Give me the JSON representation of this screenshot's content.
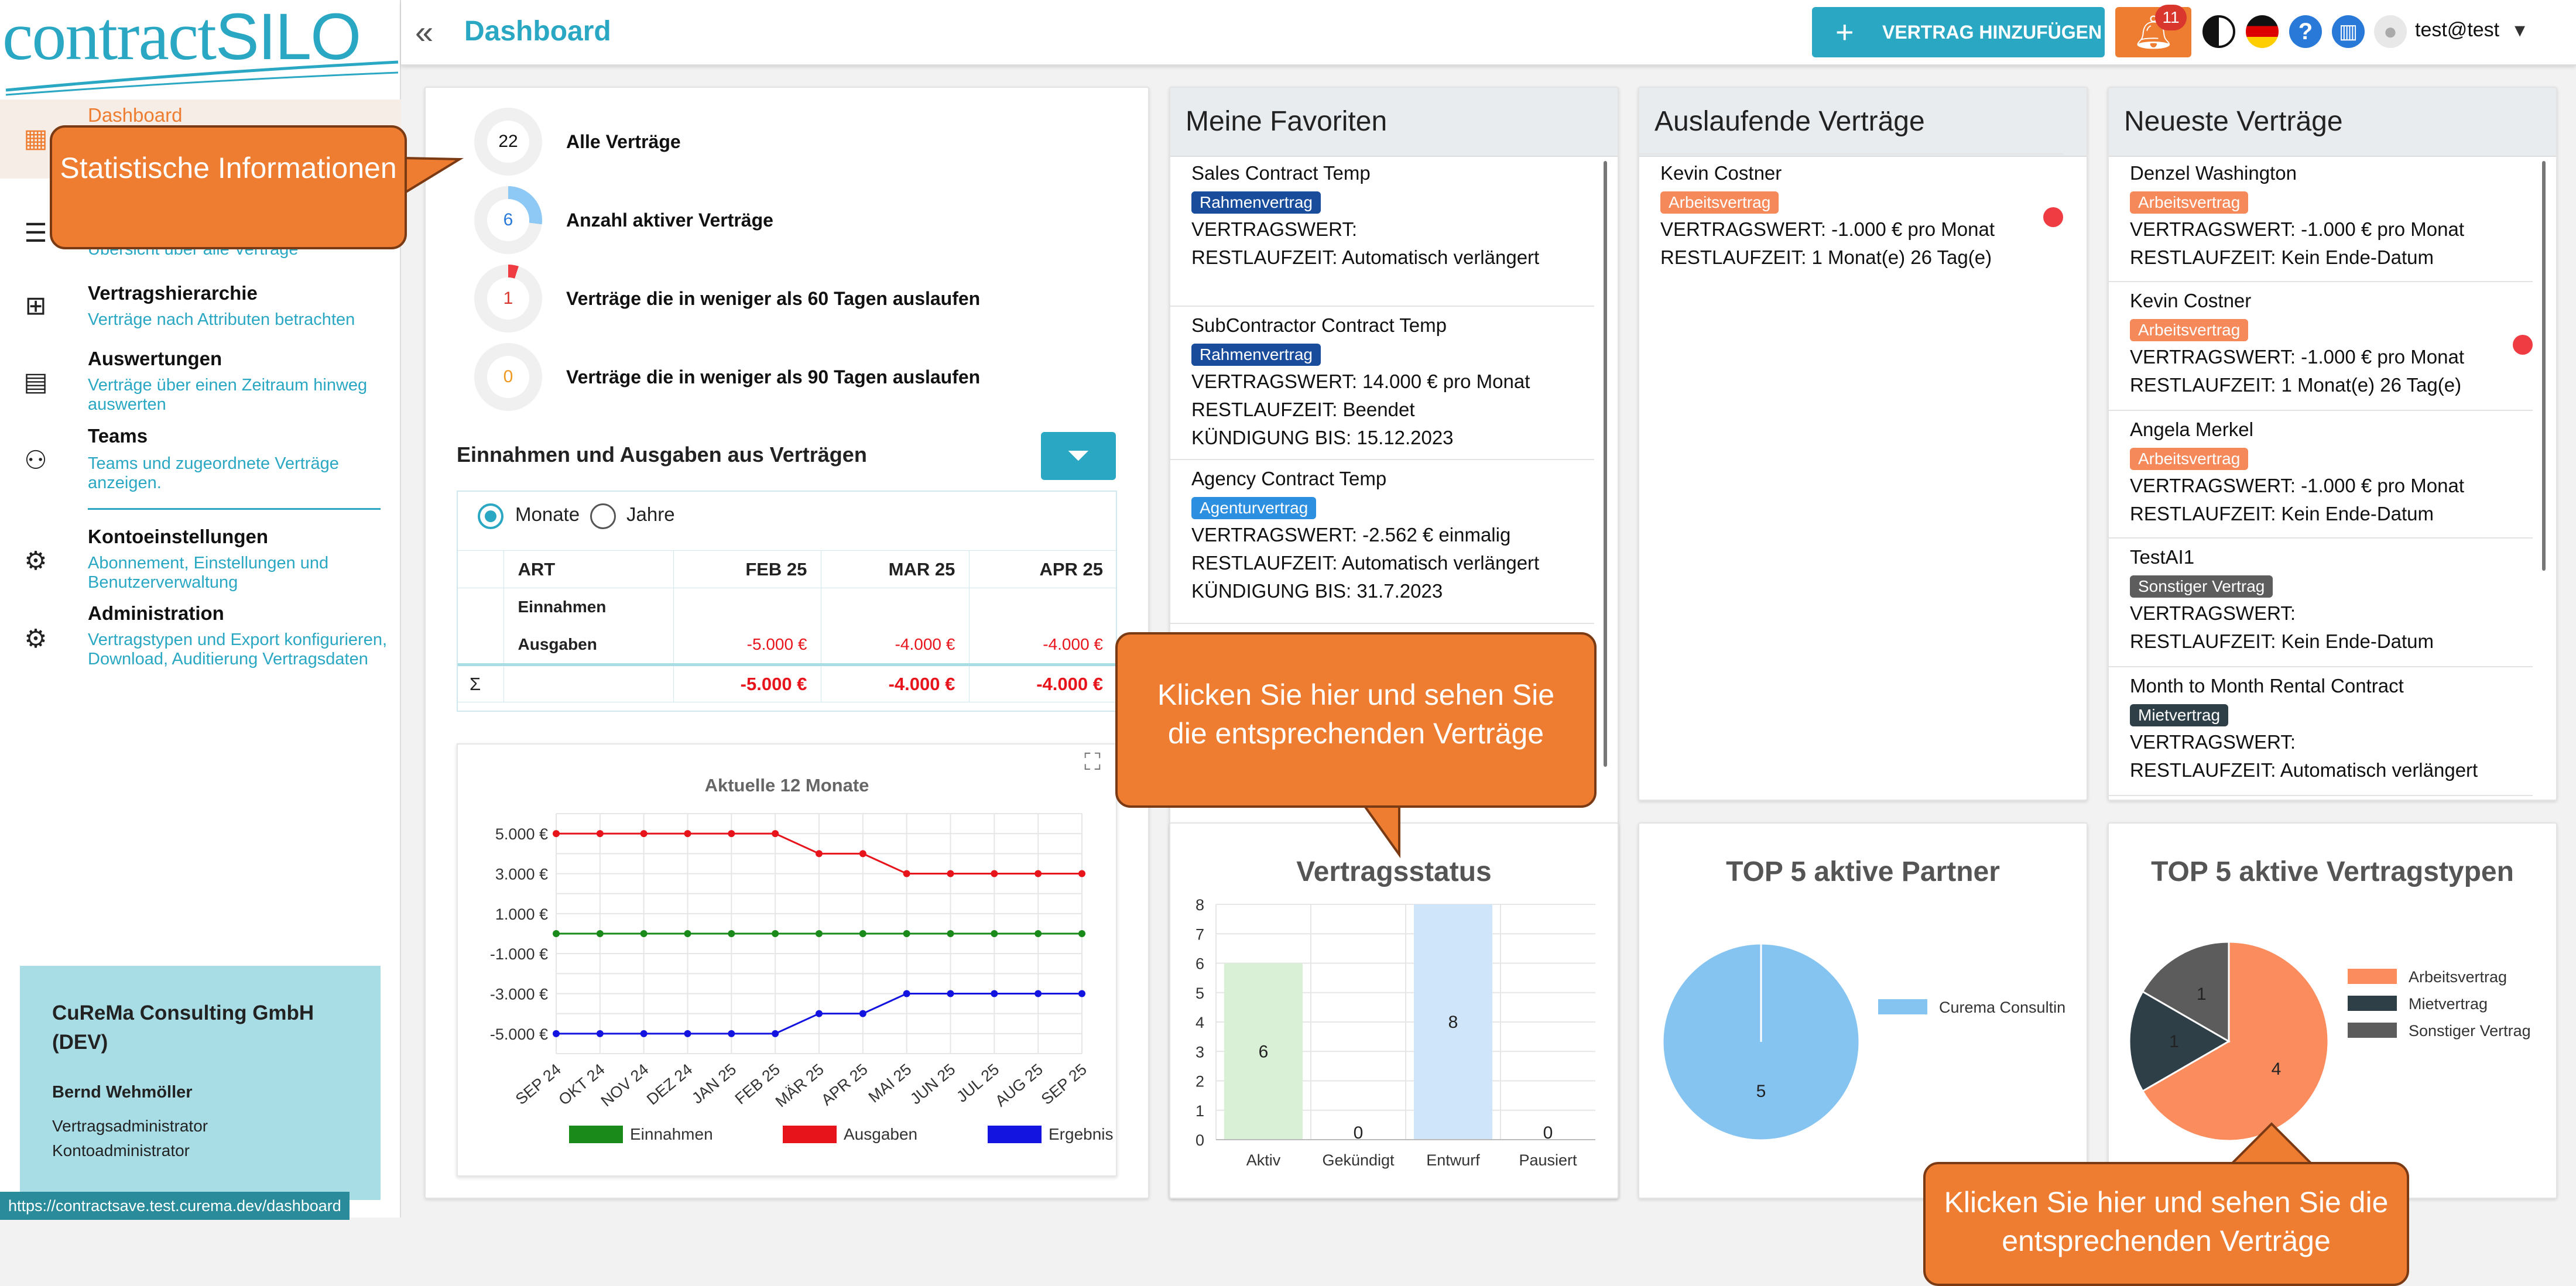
{
  "app": {
    "logo_part1": "contract",
    "logo_part2": "SILO"
  },
  "header": {
    "title": "Dashboard",
    "add_button": "VERTRAG HINZUFÜGEN",
    "notification_count": "11",
    "user": "test@test"
  },
  "sidebar": {
    "items": [
      {
        "title": "Dashboard",
        "sub": ""
      },
      {
        "title": "",
        "sub": "Übersicht über alle Verträge"
      },
      {
        "title": "Vertragshierarchie",
        "sub": "Verträge nach Attributen betrachten"
      },
      {
        "title": "Auswertungen",
        "sub": "Verträge über einen Zeitraum hinweg auswerten"
      },
      {
        "title": "Teams",
        "sub": "Teams und zugeordnete Verträge anzeigen."
      },
      {
        "title": "Kontoeinstellungen",
        "sub": "Abonnement, Einstellungen und Benutzerverwaltung"
      },
      {
        "title": "Administration",
        "sub": "Vertragstypen und Export konfigurieren, Download, Auditierung Vertragsdaten"
      }
    ],
    "org": {
      "name": "CuReMa Consulting GmbH (DEV)",
      "user": "Bernd Wehmöller",
      "role1": "Vertragsadministrator",
      "role2": "Kontoadministrator"
    }
  },
  "status_url": "https://contractsave.test.curema.dev/dashboard",
  "stats": [
    {
      "count": "22",
      "label": "Alle Verträge",
      "fill": 0
    },
    {
      "count": "6",
      "label": "Anzahl aktiver Verträge",
      "fill": 0.27
    },
    {
      "count": "1",
      "label": "Verträge die in weniger als 60 Tagen auslaufen",
      "fill": 0.05
    },
    {
      "count": "0",
      "label": "Verträge die in weniger als 90 Tagen auslaufen",
      "fill": 0
    }
  ],
  "finance": {
    "title": "Einnahmen und Ausgaben aus Verträgen",
    "period_months": "Monate",
    "period_years": "Jahre",
    "columns": [
      "ART",
      "FEB 25",
      "MAR 25",
      "APR 25"
    ],
    "row_income": "Einnahmen",
    "row_expense": "Ausgaben",
    "expense_values": [
      "-5.000 €",
      "-4.000 €",
      "-4.000 €"
    ],
    "sum_label": "Σ",
    "sum_values": [
      "-5.000 €",
      "-4.000 €",
      "-4.000 €"
    ]
  },
  "line_chart": {
    "chart_data": {
      "type": "line",
      "title": "Aktuelle 12 Monate",
      "x": [
        "SEP 24",
        "OKT 24",
        "NOV 24",
        "DEZ 24",
        "JAN 25",
        "FEB 25",
        "MÄR 25",
        "APR 25",
        "MAI 25",
        "JUN 25",
        "JUL 25",
        "AUG 25",
        "SEP 25"
      ],
      "y_ticks": [
        "5.000 €",
        "3.000 €",
        "1.000 €",
        "-1.000 €",
        "-3.000 €",
        "-5.000 €"
      ],
      "ylim": [
        -6000,
        6000
      ],
      "series": [
        {
          "name": "Einnahmen",
          "color": "#1a8a1a",
          "values": [
            0,
            0,
            0,
            0,
            0,
            0,
            0,
            0,
            0,
            0,
            0,
            0,
            0
          ]
        },
        {
          "name": "Ausgaben",
          "color": "#e8141b",
          "values": [
            5000,
            5000,
            5000,
            5000,
            5000,
            5000,
            4000,
            4000,
            3000,
            3000,
            3000,
            3000,
            3000
          ]
        },
        {
          "name": "Ergebnis",
          "color": "#1414e0",
          "values": [
            -5000,
            -5000,
            -5000,
            -5000,
            -5000,
            -5000,
            -4000,
            -4000,
            -3000,
            -3000,
            -3000,
            -3000,
            -3000
          ]
        }
      ]
    }
  },
  "favorites": {
    "title": "Meine Favoriten",
    "items": [
      {
        "name": "Sales Contract Temp",
        "tag": "Rahmenvertrag",
        "lines": [
          "VERTRAGSWERT:",
          "RESTLAUFZEIT: Automatisch verlängert"
        ]
      },
      {
        "name": "SubContractor Contract Temp",
        "tag": "Rahmenvertrag",
        "lines": [
          "VERTRAGSWERT: 14.000 € pro Monat",
          "RESTLAUFZEIT: Beendet",
          "KÜNDIGUNG BIS: 15.12.2023"
        ]
      },
      {
        "name": "Agency Contract Temp",
        "tag": "Agenturvertrag",
        "lines": [
          "VERTRAGSWERT: -2.562 € einmalig",
          "RESTLAUFZEIT: Automatisch verlängert",
          "KÜNDIGUNG BIS: 31.7.2023"
        ]
      }
    ]
  },
  "expiring": {
    "title": "Auslaufende Verträge",
    "items": [
      {
        "name": "Kevin Costner",
        "tag": "Arbeitsvertrag",
        "lines": [
          "VERTRAGSWERT: -1.000 € pro Monat",
          "RESTLAUFZEIT: 1 Monat(e) 26 Tag(e)"
        ]
      }
    ]
  },
  "newest": {
    "title": "Neueste Verträge",
    "items": [
      {
        "name": "Denzel Washington",
        "tag": "Arbeitsvertrag",
        "lines": [
          "VERTRAGSWERT: -1.000 € pro Monat",
          "RESTLAUFZEIT: Kein Ende-Datum"
        ]
      },
      {
        "name": "Kevin Costner",
        "tag": "Arbeitsvertrag",
        "lines": [
          "VERTRAGSWERT: -1.000 € pro Monat",
          "RESTLAUFZEIT: 1 Monat(e) 26 Tag(e)"
        ]
      },
      {
        "name": "Angela Merkel",
        "tag": "Arbeitsvertrag",
        "lines": [
          "VERTRAGSWERT: -1.000 € pro Monat",
          "RESTLAUFZEIT: Kein Ende-Datum"
        ]
      },
      {
        "name": "TestAI1",
        "tag": "Sonstiger Vertrag",
        "lines": [
          "VERTRAGSWERT:",
          "RESTLAUFZEIT: Kein Ende-Datum"
        ]
      },
      {
        "name": "Month to Month Rental Contract",
        "tag": "Mietvertrag",
        "lines": [
          "VERTRAGSWERT:",
          "RESTLAUFZEIT: Automatisch verlängert"
        ]
      }
    ]
  },
  "status_chart": {
    "chart_data": {
      "type": "bar",
      "title": "Vertragsstatus",
      "categories": [
        "Aktiv",
        "Gekündigt",
        "Entwurf",
        "Pausiert"
      ],
      "values": [
        6,
        0,
        8,
        0
      ],
      "ylim": [
        0,
        8
      ],
      "y_ticks": [
        "0",
        "1",
        "2",
        "3",
        "4",
        "5",
        "6",
        "7",
        "8"
      ],
      "colors": [
        "#d9efd6",
        "#f0d6d6",
        "#cfe6fa",
        "#eee"
      ]
    }
  },
  "partner_chart": {
    "chart_data": {
      "type": "pie",
      "title": "TOP 5 aktive Partner",
      "labels": [
        "Curema Consultin"
      ],
      "values": [
        5
      ],
      "colors": [
        "#85c3f0"
      ]
    }
  },
  "types_chart": {
    "chart_data": {
      "type": "pie",
      "title": "TOP 5 aktive Vertragstypen",
      "labels": [
        "Arbeitsvertrag",
        "Mietvertrag",
        "Sonstiger Vertrag"
      ],
      "values": [
        4,
        1,
        1
      ],
      "colors": [
        "#fb8c5e",
        "#2f3f48",
        "#5c5c5c"
      ]
    }
  },
  "callouts": {
    "stats": "Statistische Informationen",
    "status": "Klicken Sie hier und sehen Sie die entsprechenden Verträge",
    "types": "Klicken Sie hier und sehen Sie die entsprechenden Verträge"
  }
}
